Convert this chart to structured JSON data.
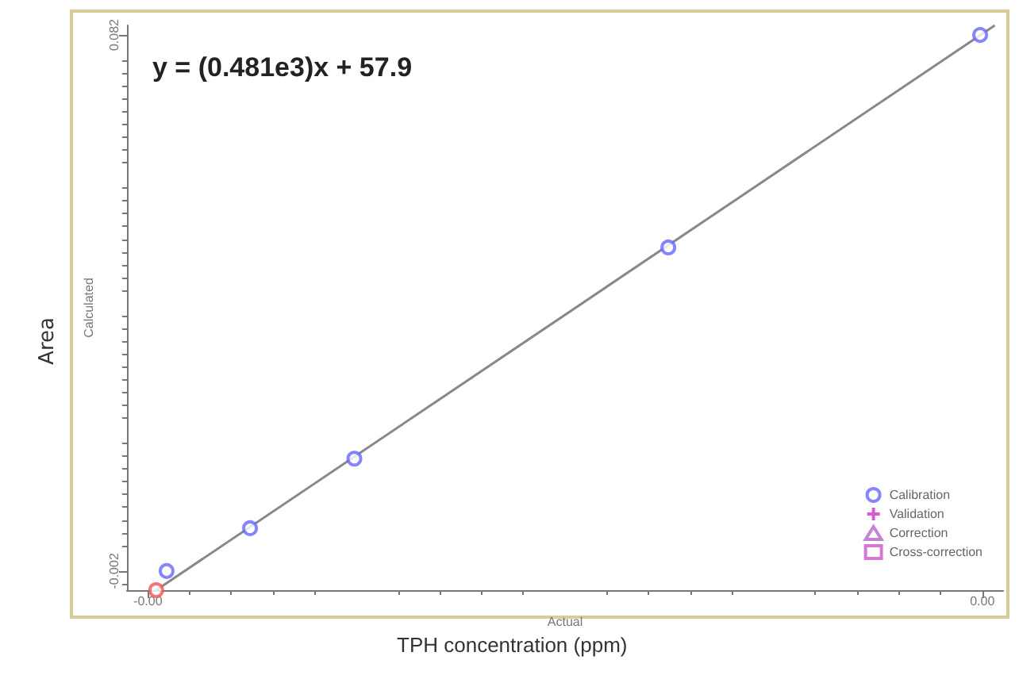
{
  "chart_data": {
    "type": "scatter",
    "xlabel": "Actual",
    "ylabel": "Calculated",
    "annotations": [
      "y = (0.481e3)x + 57.9",
      "Area",
      "TPH concentration (ppm)"
    ],
    "xlim": [
      -0.0021,
      0.0021
    ],
    "ylim": [
      -0.005,
      0.0835
    ],
    "xticks": [
      {
        "value": -0.002,
        "label": "-0.00"
      },
      {
        "value": 0.002,
        "label": "0.00"
      }
    ],
    "yticks": [
      {
        "value": -0.002,
        "label": "-0.002"
      },
      {
        "value": 0.082,
        "label": "0.082"
      }
    ],
    "grid": false,
    "legend": "bottom right",
    "series": [
      {
        "name": "Calibration",
        "color": "#6666ff",
        "marker": "circle",
        "x": [
          -0.00191,
          -0.00151,
          -0.00101,
          0.000495,
          0.00199
        ],
        "values": [
          -0.002,
          0.0047,
          0.0156,
          0.0487,
          0.082
        ]
      },
      {
        "name": "Validation",
        "color": "#cc33cc",
        "marker": "cross"
      },
      {
        "name": "Correction",
        "color": "#b366cc",
        "marker": "triangle"
      },
      {
        "name": "Cross-correction",
        "color": "#cc55cc",
        "marker": "square"
      },
      {
        "color": "#ee5555",
        "marker": "circle",
        "x": [
          -0.00196
        ],
        "values": [
          -0.005
        ]
      },
      {
        "type": "line",
        "color": "#888888",
        "marker": "none",
        "line_style": "solid",
        "x": [
          -0.00196,
          0.00206
        ],
        "values": [
          -0.005,
          0.0835
        ]
      }
    ]
  }
}
